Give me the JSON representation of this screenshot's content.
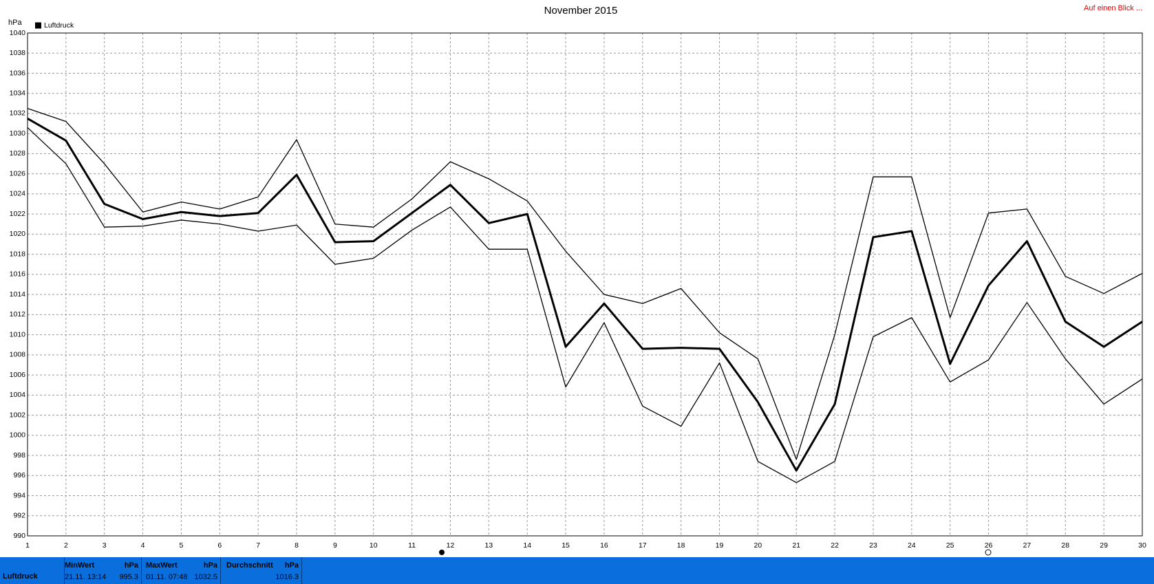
{
  "chart_data": {
    "type": "line",
    "title": "November 2015",
    "link": "Auf einen Blick ...",
    "y_unit": "hPa",
    "x": [
      1,
      2,
      3,
      4,
      5,
      6,
      7,
      8,
      9,
      10,
      11,
      12,
      13,
      14,
      15,
      16,
      17,
      18,
      19,
      20,
      21,
      22,
      23,
      24,
      25,
      26,
      27,
      28,
      29,
      30
    ],
    "xlim": [
      1,
      30
    ],
    "xticks": [
      1,
      2,
      3,
      4,
      5,
      6,
      7,
      8,
      9,
      10,
      11,
      12,
      13,
      14,
      15,
      16,
      17,
      18,
      19,
      20,
      21,
      22,
      23,
      24,
      25,
      26,
      27,
      28,
      29,
      30
    ],
    "ylim": [
      990,
      1040
    ],
    "yticks": [
      990,
      992,
      994,
      996,
      998,
      1000,
      1002,
      1004,
      1006,
      1008,
      1010,
      1012,
      1014,
      1016,
      1018,
      1020,
      1022,
      1024,
      1026,
      1028,
      1030,
      1032,
      1034,
      1036,
      1038,
      1040
    ],
    "grid": true,
    "legend": "top-left",
    "series": [
      {
        "color": "#000000",
        "values": [
          1032.5,
          1031.2,
          1027.0,
          1022.2,
          1023.2,
          1022.5,
          1023.7,
          1029.4,
          1021.0,
          1020.7,
          1023.5,
          1027.2,
          1025.5,
          1023.3,
          1018.3,
          1014.0,
          1013.1,
          1014.6,
          1010.2,
          1007.6,
          997.6,
          1010.0,
          1025.7,
          1025.7,
          1011.7,
          1022.1,
          1022.5,
          1015.8,
          1014.1,
          1016.1
        ]
      },
      {
        "name": "Luftdruck",
        "color": "#000000",
        "values": [
          1031.5,
          1029.3,
          1023.0,
          1021.5,
          1022.2,
          1021.8,
          1022.1,
          1025.9,
          1019.2,
          1019.3,
          1022.1,
          1024.9,
          1021.1,
          1022.0,
          1008.8,
          1013.1,
          1008.6,
          1008.7,
          1008.6,
          1003.3,
          996.5,
          1003.1,
          1019.7,
          1020.3,
          1007.1,
          1014.9,
          1019.3,
          1011.3,
          1008.8,
          1011.3
        ]
      },
      {
        "color": "#000000",
        "values": [
          1030.6,
          1027.0,
          1020.7,
          1020.8,
          1021.4,
          1021.0,
          1020.3,
          1020.9,
          1017.0,
          1017.6,
          1020.4,
          1022.7,
          1018.5,
          1018.5,
          1004.8,
          1011.2,
          1002.9,
          1000.9,
          1007.2,
          997.4,
          995.3,
          997.4,
          1009.8,
          1011.7,
          1005.3,
          1007.5,
          1013.2,
          1007.6,
          1003.1,
          1005.6
        ]
      }
    ]
  },
  "summary": {
    "label": "Luftdruck",
    "min": {
      "title": "MinWert",
      "unit": "hPa",
      "time": "21.11. 13:14",
      "value": "995.3"
    },
    "max": {
      "title": "MaxWert",
      "unit": "hPa",
      "time": "01.11. 07:48",
      "value": "1032.5"
    },
    "avg": {
      "title": "Durchschnitt",
      "unit": "hPa",
      "value": "1016.3"
    }
  }
}
